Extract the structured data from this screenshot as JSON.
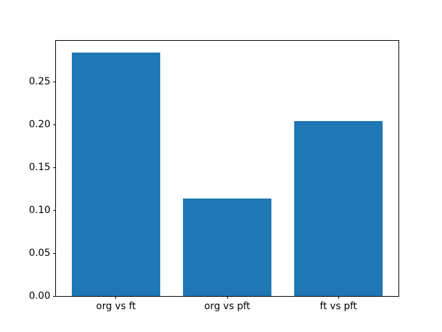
{
  "chart_data": {
    "type": "bar",
    "categories": [
      "org vs ft",
      "org vs pft",
      "ft vs pft"
    ],
    "values": [
      0.284,
      0.114,
      0.204
    ],
    "title": "",
    "xlabel": "",
    "ylabel": "",
    "ylim": [
      0,
      0.298
    ],
    "xlim": [
      -0.54,
      2.54
    ],
    "bar_width": 0.8,
    "bar_color": "#1f77b4",
    "y_ticks": [
      0.0,
      0.05,
      0.1,
      0.15,
      0.2,
      0.25
    ],
    "y_tick_labels": [
      "0.00",
      "0.05",
      "0.10",
      "0.15",
      "0.20",
      "0.25"
    ],
    "grid": false,
    "legend": null,
    "background_color": "#ffffff",
    "spine_color": "#000000"
  }
}
